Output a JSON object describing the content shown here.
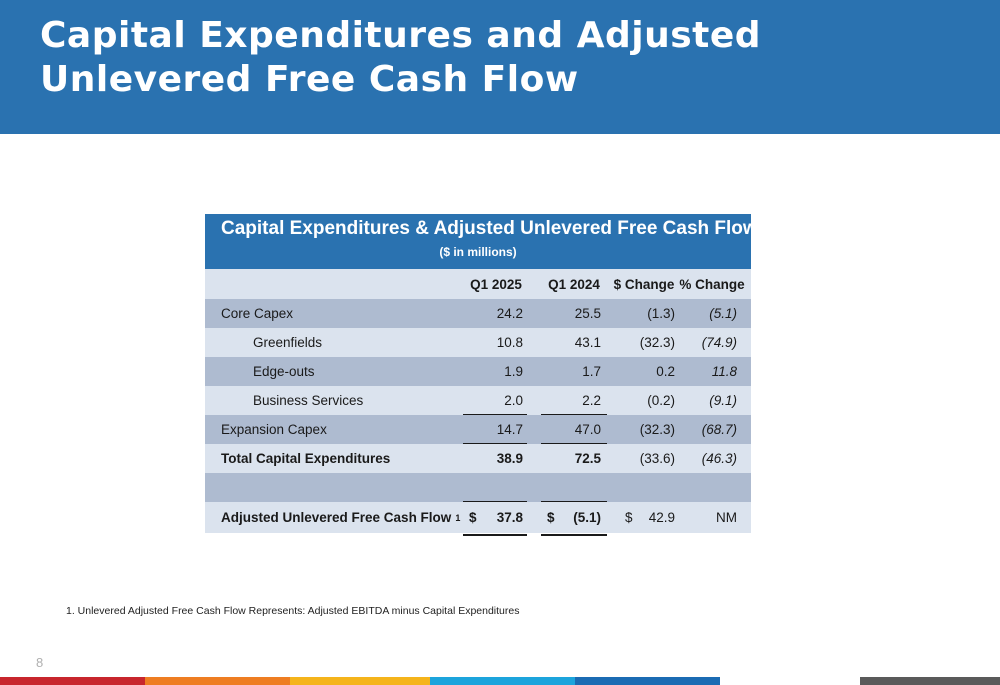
{
  "page": {
    "title": "Capital Expenditures and Adjusted Unlevered Free Cash Flow",
    "page_number": "8",
    "footnote": "1.  Unlevered Adjusted Free Cash Flow Represents: Adjusted EBITDA minus Capital Expenditures"
  },
  "table": {
    "title": "Capital Expenditures & Adjusted Unlevered Free Cash Flow",
    "subtitle": "($ in millions)",
    "columns": [
      "Q1 2025",
      "Q1 2024",
      "$ Change",
      "% Change"
    ],
    "rows": [
      {
        "label": "Core Capex",
        "values": [
          "24.2",
          "25.5",
          "(1.3)",
          "(5.1)"
        ]
      },
      {
        "label": "Greenfields",
        "values": [
          "10.8",
          "43.1",
          "(32.3)",
          "(74.9)"
        ]
      },
      {
        "label": "Edge-outs",
        "values": [
          "1.9",
          "1.7",
          "0.2",
          "11.8"
        ]
      },
      {
        "label": "Business Services",
        "values": [
          "2.0",
          "2.2",
          "(0.2)",
          "(9.1)"
        ]
      },
      {
        "label": "Expansion Capex",
        "values": [
          "14.7",
          "47.0",
          "(32.3)",
          "(68.7)"
        ]
      },
      {
        "label": "Total Capital Expenditures",
        "values": [
          "38.9",
          "72.5",
          "(33.6)",
          "(46.3)"
        ]
      }
    ],
    "fcf": {
      "label": "Adjusted Unlevered Free Cash Flow",
      "footnote_ref": "1",
      "currency": "$",
      "values": [
        "37.8",
        "(5.1)",
        "42.9",
        "NM"
      ]
    }
  },
  "colors": {
    "header_blue": "#2a72b0",
    "row_dark": "#aebbd0",
    "row_light": "#dbe3ee",
    "bar_red": "#c8262d",
    "bar_orange": "#ee7d22",
    "bar_yellow": "#f5b41b",
    "bar_cyan": "#1ca4dc",
    "bar_blue": "#1b6bb3",
    "bar_gray": "#5a5a5a"
  }
}
